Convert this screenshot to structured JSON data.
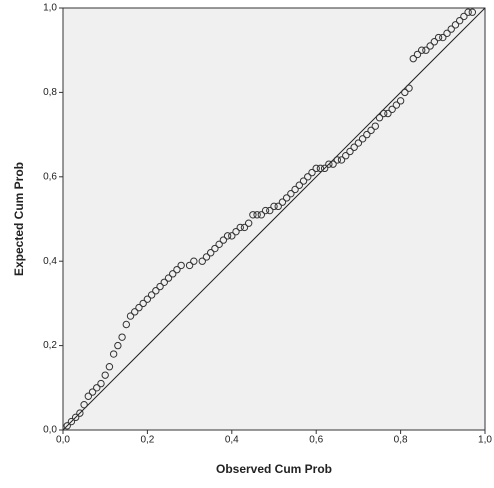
{
  "chart_data": {
    "type": "scatter",
    "x_label": "Observed Cum Prob",
    "y_label": "Expected Cum Prob",
    "xlim": [
      0,
      1
    ],
    "ylim": [
      0,
      1
    ],
    "xticks": [
      {
        "value": 0,
        "label": "0,0"
      },
      {
        "value": 0.2,
        "label": "0,2"
      },
      {
        "value": 0.4,
        "label": "0,4"
      },
      {
        "value": 0.6,
        "label": "0,6"
      },
      {
        "value": 0.8,
        "label": "0,8"
      },
      {
        "value": 1,
        "label": "1,0"
      }
    ],
    "yticks": [
      {
        "value": 0,
        "label": "0,0"
      },
      {
        "value": 0.2,
        "label": "0,2"
      },
      {
        "value": 0.4,
        "label": "0,4"
      },
      {
        "value": 0.6,
        "label": "0,6"
      },
      {
        "value": 0.8,
        "label": "0,8"
      },
      {
        "value": 1,
        "label": "1,0"
      }
    ],
    "color": "#333333",
    "x": [
      0.01,
      0.02,
      0.03,
      0.04,
      0.05,
      0.06,
      0.07,
      0.08,
      0.09,
      0.1,
      0.11,
      0.12,
      0.13,
      0.14,
      0.15,
      0.16,
      0.17,
      0.18,
      0.19,
      0.2,
      0.21,
      0.22,
      0.23,
      0.24,
      0.25,
      0.26,
      0.27,
      0.28,
      0.3,
      0.31,
      0.33,
      0.34,
      0.35,
      0.36,
      0.37,
      0.38,
      0.39,
      0.4,
      0.41,
      0.42,
      0.43,
      0.44,
      0.45,
      0.46,
      0.47,
      0.48,
      0.49,
      0.5,
      0.51,
      0.52,
      0.53,
      0.54,
      0.55,
      0.56,
      0.57,
      0.58,
      0.59,
      0.6,
      0.61,
      0.62,
      0.63,
      0.64,
      0.65,
      0.66,
      0.67,
      0.68,
      0.69,
      0.7,
      0.71,
      0.72,
      0.73,
      0.74,
      0.75,
      0.76,
      0.77,
      0.78,
      0.79,
      0.8,
      0.81,
      0.82,
      0.83,
      0.84,
      0.85,
      0.86,
      0.87,
      0.88,
      0.89,
      0.9,
      0.91,
      0.92,
      0.93,
      0.94,
      0.95,
      0.96,
      0.97
    ],
    "y": [
      0.01,
      0.02,
      0.03,
      0.04,
      0.06,
      0.08,
      0.09,
      0.1,
      0.11,
      0.13,
      0.15,
      0.18,
      0.2,
      0.22,
      0.25,
      0.27,
      0.28,
      0.29,
      0.3,
      0.31,
      0.32,
      0.33,
      0.34,
      0.35,
      0.36,
      0.37,
      0.38,
      0.39,
      0.39,
      0.4,
      0.4,
      0.41,
      0.42,
      0.43,
      0.44,
      0.45,
      0.46,
      0.46,
      0.47,
      0.48,
      0.48,
      0.49,
      0.51,
      0.51,
      0.51,
      0.52,
      0.52,
      0.53,
      0.53,
      0.54,
      0.55,
      0.56,
      0.57,
      0.58,
      0.59,
      0.6,
      0.61,
      0.62,
      0.62,
      0.62,
      0.63,
      0.63,
      0.64,
      0.64,
      0.65,
      0.66,
      0.67,
      0.68,
      0.69,
      0.7,
      0.71,
      0.72,
      0.74,
      0.75,
      0.75,
      0.76,
      0.77,
      0.78,
      0.8,
      0.81,
      0.88,
      0.89,
      0.9,
      0.9,
      0.91,
      0.92,
      0.93,
      0.93,
      0.94,
      0.95,
      0.96,
      0.97,
      0.98,
      0.99,
      0.99
    ]
  }
}
